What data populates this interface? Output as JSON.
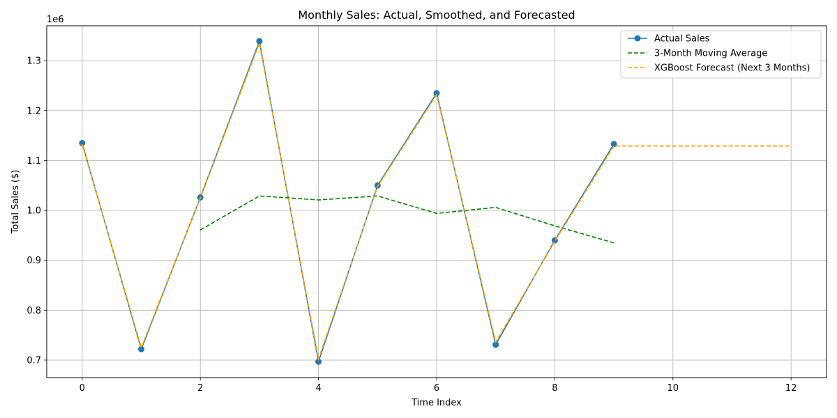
{
  "chart_data": {
    "type": "line",
    "title": "Monthly Sales: Actual, Smoothed, and Forecasted",
    "xlabel": "Time Index",
    "ylabel": "Total Sales ($)",
    "y_offset_label": "1e6",
    "xlim": [
      -0.6,
      12.6
    ],
    "ylim": [
      665000,
      1370000
    ],
    "x_ticks": [
      0,
      2,
      4,
      6,
      8,
      10,
      12
    ],
    "x_tick_labels": [
      "0",
      "2",
      "4",
      "6",
      "8",
      "10",
      "12"
    ],
    "y_ticks": [
      700000,
      800000,
      900000,
      1000000,
      1100000,
      1200000,
      1300000
    ],
    "y_tick_labels": [
      "0.7",
      "0.8",
      "0.9",
      "1.0",
      "1.1",
      "1.2",
      "1.3"
    ],
    "grid": true,
    "legend_position": "top-right",
    "series": [
      {
        "name": "Actual Sales",
        "color": "#1f77b4",
        "style": "solid-markers",
        "x": [
          0,
          1,
          2,
          3,
          4,
          5,
          6,
          7,
          8,
          9
        ],
        "values": [
          1135000,
          722000,
          1026000,
          1339000,
          697000,
          1050000,
          1235000,
          731000,
          940000,
          1133000
        ]
      },
      {
        "name": "3-Month Moving Average",
        "color": "#008000",
        "style": "dashed",
        "x": [
          2,
          3,
          4,
          5,
          6,
          7,
          8,
          9
        ],
        "values": [
          961000,
          1029000,
          1021000,
          1029000,
          994000,
          1006000,
          969000,
          935000
        ]
      },
      {
        "name": "XGBoost Forecast (Next 3 Months)",
        "color": "#ffa500",
        "style": "dashed",
        "x": [
          0,
          1,
          2,
          3,
          4,
          5,
          6,
          7,
          8,
          9,
          10,
          11,
          12
        ],
        "values": [
          1133000,
          725000,
          1025000,
          1335000,
          702000,
          1048000,
          1232000,
          736000,
          938000,
          1129000,
          1129000,
          1129000,
          1129000
        ]
      }
    ]
  }
}
